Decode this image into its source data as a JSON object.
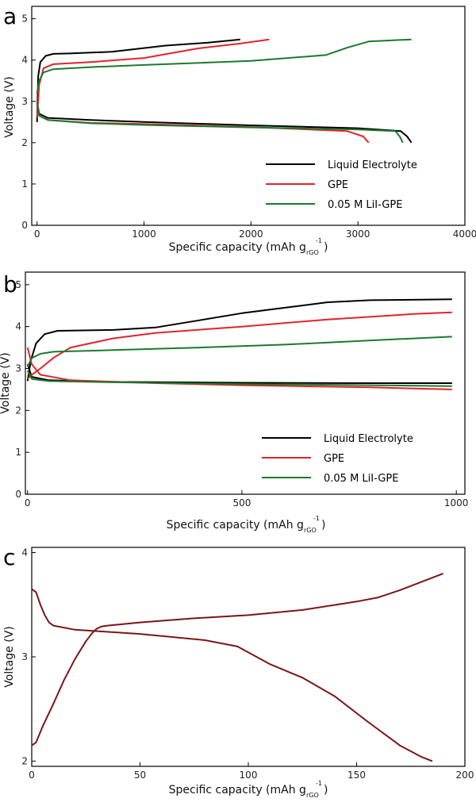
{
  "chart_data": [
    {
      "panel": "a",
      "type": "line",
      "xlabel": "Specific capacity (mAh g",
      "xlabel_sub": "rGO",
      "xlabel_sup": "-1",
      "xlabel_end": ")",
      "ylabel": "Voltage (V)",
      "xlim": [
        -50,
        4000
      ],
      "ylim": [
        0,
        5.3
      ],
      "xticks": [
        0,
        1000,
        2000,
        3000,
        4000
      ],
      "yticks": [
        0,
        1,
        2,
        3,
        4,
        5
      ],
      "legend_position": "bottom-right",
      "series": [
        {
          "name": "Liquid Electrolyte",
          "color": "#000000",
          "segments": [
            {
              "x": [
                0,
                10,
                30,
                80,
                150,
                300,
                700,
                1200,
                1600,
                1900
              ],
              "y": [
                2.5,
                3.6,
                3.95,
                4.1,
                4.15,
                4.16,
                4.2,
                4.35,
                4.42,
                4.5
              ]
            },
            {
              "x": [
                0,
                20,
                100,
                500,
                1000,
                2000,
                3000,
                3400,
                3460,
                3500
              ],
              "y": [
                3.0,
                2.7,
                2.6,
                2.55,
                2.5,
                2.42,
                2.35,
                2.28,
                2.15,
                2.0
              ]
            }
          ]
        },
        {
          "name": "GPE",
          "color": "#e0242c",
          "segments": [
            {
              "x": [
                0,
                20,
                60,
                150,
                500,
                1000,
                1500,
                1900,
                2170
              ],
              "y": [
                2.6,
                3.4,
                3.8,
                3.9,
                3.95,
                4.05,
                4.28,
                4.4,
                4.5
              ]
            },
            {
              "x": [
                0,
                20,
                100,
                500,
                1000,
                2000,
                2900,
                3050,
                3100
              ],
              "y": [
                2.9,
                2.65,
                2.55,
                2.48,
                2.45,
                2.38,
                2.28,
                2.15,
                2.0
              ]
            }
          ]
        },
        {
          "name": "0.05 M LiI-GPE",
          "color": "#1a7a2e",
          "segments": [
            {
              "x": [
                0,
                20,
                60,
                150,
                500,
                1000,
                2000,
                2700,
                2900,
                3100,
                3500
              ],
              "y": [
                3.2,
                3.5,
                3.7,
                3.78,
                3.83,
                3.88,
                3.98,
                4.12,
                4.3,
                4.45,
                4.5
              ]
            },
            {
              "x": [
                0,
                20,
                100,
                500,
                1000,
                2000,
                3000,
                3350,
                3390,
                3420
              ],
              "y": [
                3.0,
                2.65,
                2.55,
                2.47,
                2.43,
                2.37,
                2.32,
                2.28,
                2.15,
                2.0
              ]
            }
          ]
        }
      ]
    },
    {
      "panel": "b",
      "type": "line",
      "xlabel": "Specific capacity (mAh g",
      "xlabel_sub": "rGO",
      "xlabel_sup": "-1",
      "xlabel_end": ")",
      "ylabel": "Voltage (V)",
      "xlim": [
        -5,
        1020
      ],
      "ylim": [
        0,
        5.3
      ],
      "xticks": [
        0,
        500,
        1000
      ],
      "yticks": [
        0,
        1,
        2,
        3,
        4,
        5
      ],
      "legend_position": "bottom-right",
      "series": [
        {
          "name": "Liquid Electrolyte",
          "color": "#000000",
          "segments": [
            {
              "x": [
                0,
                8,
                20,
                40,
                70,
                200,
                300,
                400,
                500,
                600,
                700,
                800,
                990
              ],
              "y": [
                2.7,
                3.2,
                3.6,
                3.82,
                3.9,
                3.92,
                3.98,
                4.15,
                4.32,
                4.45,
                4.58,
                4.63,
                4.65
              ]
            },
            {
              "x": [
                0,
                10,
                50,
                200,
                500,
                800,
                990
              ],
              "y": [
                3.1,
                2.8,
                2.72,
                2.68,
                2.66,
                2.65,
                2.65
              ]
            }
          ]
        },
        {
          "name": "GPE",
          "color": "#e0242c",
          "segments": [
            {
              "x": [
                0,
                10,
                30,
                60,
                100,
                200,
                300,
                500,
                700,
                900,
                990
              ],
              "y": [
                2.75,
                2.85,
                3.0,
                3.25,
                3.5,
                3.72,
                3.85,
                4.0,
                4.17,
                4.3,
                4.34
              ]
            },
            {
              "x": [
                0,
                10,
                30,
                100,
                300,
                500,
                800,
                990
              ],
              "y": [
                3.5,
                3.1,
                2.85,
                2.72,
                2.65,
                2.6,
                2.55,
                2.5
              ]
            }
          ]
        },
        {
          "name": "0.05 M LiI-GPE",
          "color": "#1a7a2e",
          "segments": [
            {
              "x": [
                0,
                10,
                30,
                60,
                200,
                400,
                600,
                800,
                990
              ],
              "y": [
                3.05,
                3.25,
                3.35,
                3.4,
                3.44,
                3.5,
                3.57,
                3.67,
                3.76
              ]
            },
            {
              "x": [
                0,
                10,
                50,
                200,
                500,
                800,
                990
              ],
              "y": [
                2.95,
                2.75,
                2.7,
                2.67,
                2.63,
                2.6,
                2.58
              ]
            }
          ]
        }
      ]
    },
    {
      "panel": "c",
      "type": "line",
      "xlabel": "Specific capacity (mAh g",
      "xlabel_sub": "rGO",
      "xlabel_sup": "-1",
      "xlabel_end": ")",
      "ylabel": "Voltage (V)",
      "xlim": [
        0,
        200
      ],
      "ylim": [
        1.95,
        4.05
      ],
      "xticks": [
        0,
        50,
        100,
        150,
        200
      ],
      "yticks": [
        2,
        3,
        4
      ],
      "series": [
        {
          "color": "#7a1616",
          "segments": [
            {
              "x": [
                0,
                2,
                5,
                10,
                15,
                20,
                25,
                28,
                30,
                32,
                35,
                50,
                75,
                100,
                125,
                150,
                160,
                170,
                180,
                190
              ],
              "y": [
                2.15,
                2.18,
                2.33,
                2.55,
                2.78,
                2.98,
                3.15,
                3.23,
                3.27,
                3.29,
                3.3,
                3.33,
                3.37,
                3.4,
                3.45,
                3.53,
                3.57,
                3.64,
                3.72,
                3.8
              ]
            },
            {
              "x": [
                0,
                2,
                4,
                6,
                8,
                10,
                20,
                50,
                80,
                95,
                110,
                125,
                140,
                155,
                170,
                180,
                185
              ],
              "y": [
                3.65,
                3.62,
                3.5,
                3.4,
                3.33,
                3.3,
                3.26,
                3.22,
                3.16,
                3.1,
                2.93,
                2.8,
                2.62,
                2.38,
                2.15,
                2.04,
                2.0
              ]
            }
          ]
        }
      ]
    }
  ]
}
